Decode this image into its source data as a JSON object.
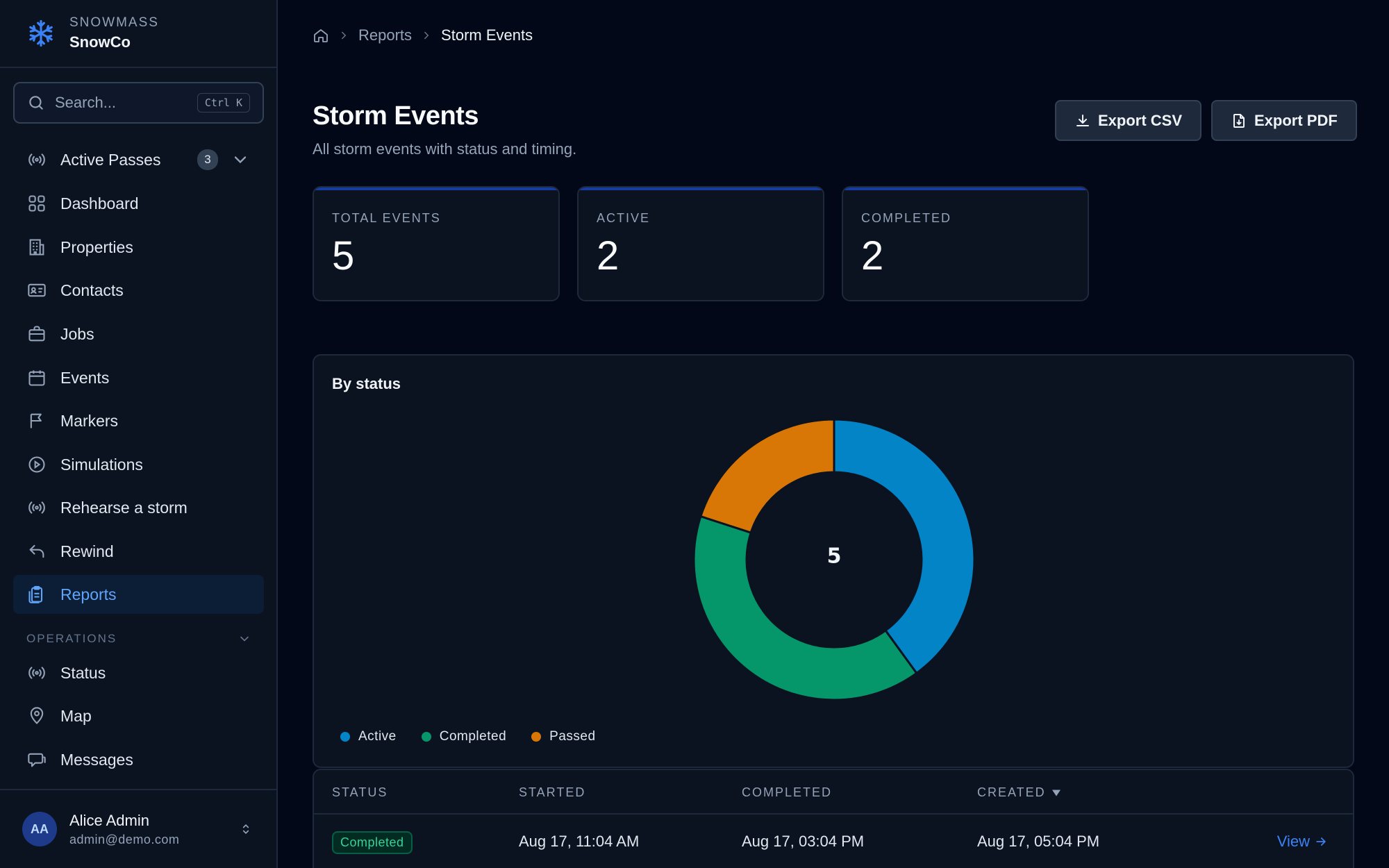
{
  "brand": {
    "org": "SNOWMASS",
    "name": "SnowCo"
  },
  "search": {
    "placeholder": "Search...",
    "shortcut": "Ctrl K"
  },
  "nav": {
    "items": [
      {
        "label": "Active Passes",
        "icon": "broadcast-icon",
        "badge": "3"
      },
      {
        "label": "Dashboard",
        "icon": "grid-icon"
      },
      {
        "label": "Properties",
        "icon": "building-icon"
      },
      {
        "label": "Contacts",
        "icon": "id-card-icon"
      },
      {
        "label": "Jobs",
        "icon": "briefcase-icon"
      },
      {
        "label": "Events",
        "icon": "calendar-icon"
      },
      {
        "label": "Markers",
        "icon": "flag-icon"
      },
      {
        "label": "Simulations",
        "icon": "play-circle-icon"
      },
      {
        "label": "Rehearse a storm",
        "icon": "broadcast-icon"
      },
      {
        "label": "Rewind",
        "icon": "undo-icon"
      },
      {
        "label": "Reports",
        "icon": "clipboard-icon",
        "active": true
      }
    ],
    "section_label": "OPERATIONS",
    "ops_items": [
      {
        "label": "Status",
        "icon": "broadcast-icon"
      },
      {
        "label": "Map",
        "icon": "map-pin-icon"
      },
      {
        "label": "Messages",
        "icon": "message-icon"
      }
    ]
  },
  "user": {
    "initials": "AA",
    "name": "Alice Admin",
    "email": "admin@demo.com"
  },
  "breadcrumb": {
    "items": [
      "Reports",
      "Storm Events"
    ]
  },
  "page": {
    "title": "Storm Events",
    "subtitle": "All storm events with status and timing."
  },
  "actions": {
    "export_csv": "Export CSV",
    "export_pdf": "Export PDF"
  },
  "kpis": [
    {
      "label": "TOTAL EVENTS",
      "value": "5"
    },
    {
      "label": "ACTIVE",
      "value": "2"
    },
    {
      "label": "COMPLETED",
      "value": "2"
    }
  ],
  "chart_data": {
    "type": "pie",
    "title": "By status",
    "center_label": "5",
    "categories": [
      "Active",
      "Completed",
      "Passed"
    ],
    "values": [
      2,
      2,
      1
    ],
    "colors": [
      "#0284c7",
      "#059669",
      "#d97706"
    ],
    "legend": "bottom-left"
  },
  "table": {
    "columns": [
      "STATUS",
      "STARTED",
      "COMPLETED",
      "CREATED"
    ],
    "sort_column": "CREATED",
    "rows": [
      {
        "status": "Completed",
        "started": "Aug 17, 11:04 AM",
        "completed": "Aug 17, 03:04 PM",
        "created": "Aug 17, 05:04 PM",
        "action": "View"
      }
    ]
  }
}
